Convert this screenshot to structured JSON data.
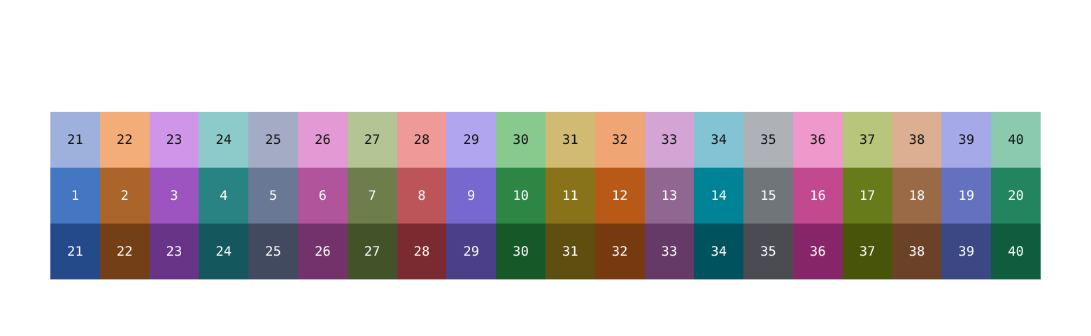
{
  "palette": {
    "light": {
      "labels": [
        "21",
        "22",
        "23",
        "24",
        "25",
        "26",
        "27",
        "28",
        "29",
        "30",
        "31",
        "32",
        "33",
        "34",
        "35",
        "36",
        "37",
        "38",
        "39",
        "40"
      ],
      "colors": [
        "#9db1dc",
        "#f3ad78",
        "#cf95e8",
        "#8ccbc9",
        "#a3acc4",
        "#e399d3",
        "#b3c495",
        "#ef9a98",
        "#b2a5f0",
        "#88c98d",
        "#d1bb72",
        "#efa574",
        "#d4a5d4",
        "#83c3d4",
        "#aeb2b7",
        "#ef98cb",
        "#b8c67b",
        "#dcae92",
        "#a5a9e7",
        "#8ccab0"
      ]
    },
    "mid": {
      "labels": [
        "1",
        "2",
        "3",
        "4",
        "5",
        "6",
        "7",
        "8",
        "9",
        "10",
        "11",
        "12",
        "13",
        "14",
        "15",
        "16",
        "17",
        "18",
        "19",
        "20"
      ],
      "colors": [
        "#4477c2",
        "#ab6429",
        "#9d54c1",
        "#2a8383",
        "#697895",
        "#b0559c",
        "#6d7d4c",
        "#bc555a",
        "#7768cf",
        "#2e8645",
        "#88721a",
        "#b85918",
        "#8f6791",
        "#008396",
        "#707579",
        "#c3498f",
        "#677b1b",
        "#9a6a47",
        "#6371bf",
        "#238560"
      ]
    },
    "dark": {
      "labels": [
        "21",
        "22",
        "23",
        "24",
        "25",
        "26",
        "27",
        "28",
        "29",
        "30",
        "31",
        "32",
        "33",
        "34",
        "35",
        "36",
        "37",
        "38",
        "39",
        "40"
      ],
      "colors": [
        "#244a89",
        "#733f17",
        "#673487",
        "#14585d",
        "#414a5e",
        "#74326a",
        "#435329",
        "#7b2a2f",
        "#4a3f88",
        "#175829",
        "#5e4e0f",
        "#773a10",
        "#663a66",
        "#00525f",
        "#4a4c51",
        "#862668",
        "#475409",
        "#6b4228",
        "#3c4884",
        "#0f5c3e"
      ]
    }
  }
}
